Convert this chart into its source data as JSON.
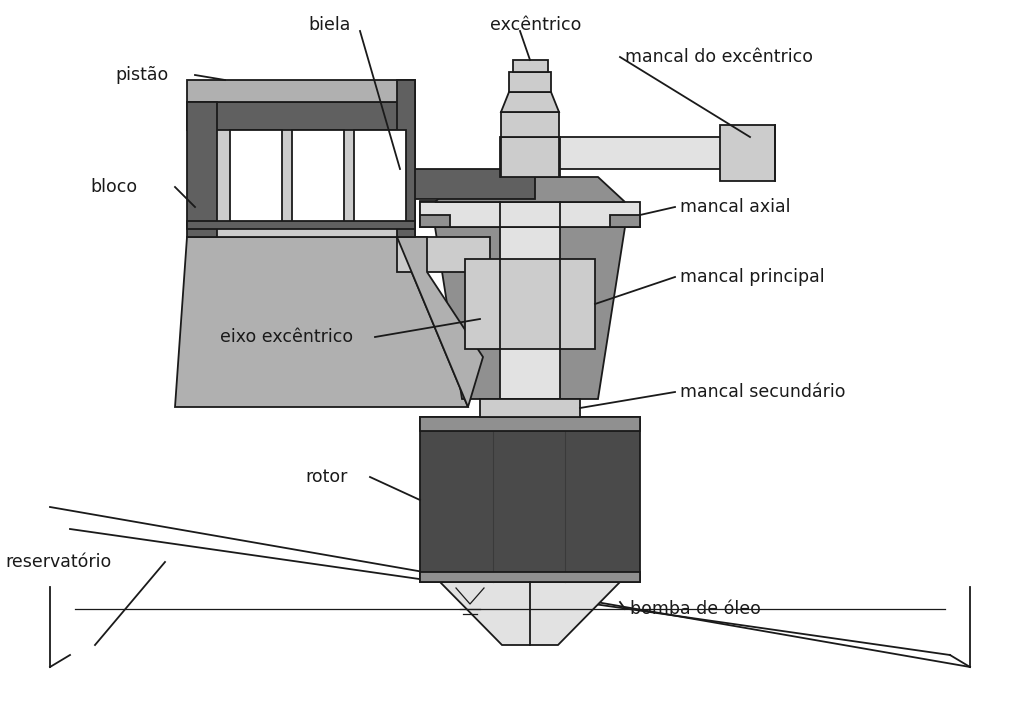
{
  "bg_color": "#ffffff",
  "line_color": "#1a1a1a",
  "c_dark_gray": "#606060",
  "c_med_gray": "#909090",
  "c_light_gray": "#b0b0b0",
  "c_lighter_gray": "#cccccc",
  "c_lightest_gray": "#e2e2e2",
  "c_dark_rotor": "#4a4a4a",
  "c_white": "#ffffff",
  "labels": {
    "pistao": "pistão",
    "biela": "biela",
    "excentrico": "excêntrico",
    "mancal_excentrico": "mancal do excêntrico",
    "bloco": "bloco",
    "mancal_axial": "mancal axial",
    "mancal_principal": "mancal principal",
    "eixo_excentrico": "eixo excêntrico",
    "mancal_secundario": "mancal secundário",
    "rotor": "rotor",
    "reservatorio": "reservatório",
    "bomba_oleo": "bomba de óleo"
  },
  "fontsize": 12.5,
  "figsize": [
    10.23,
    7.17
  ],
  "dpi": 100
}
